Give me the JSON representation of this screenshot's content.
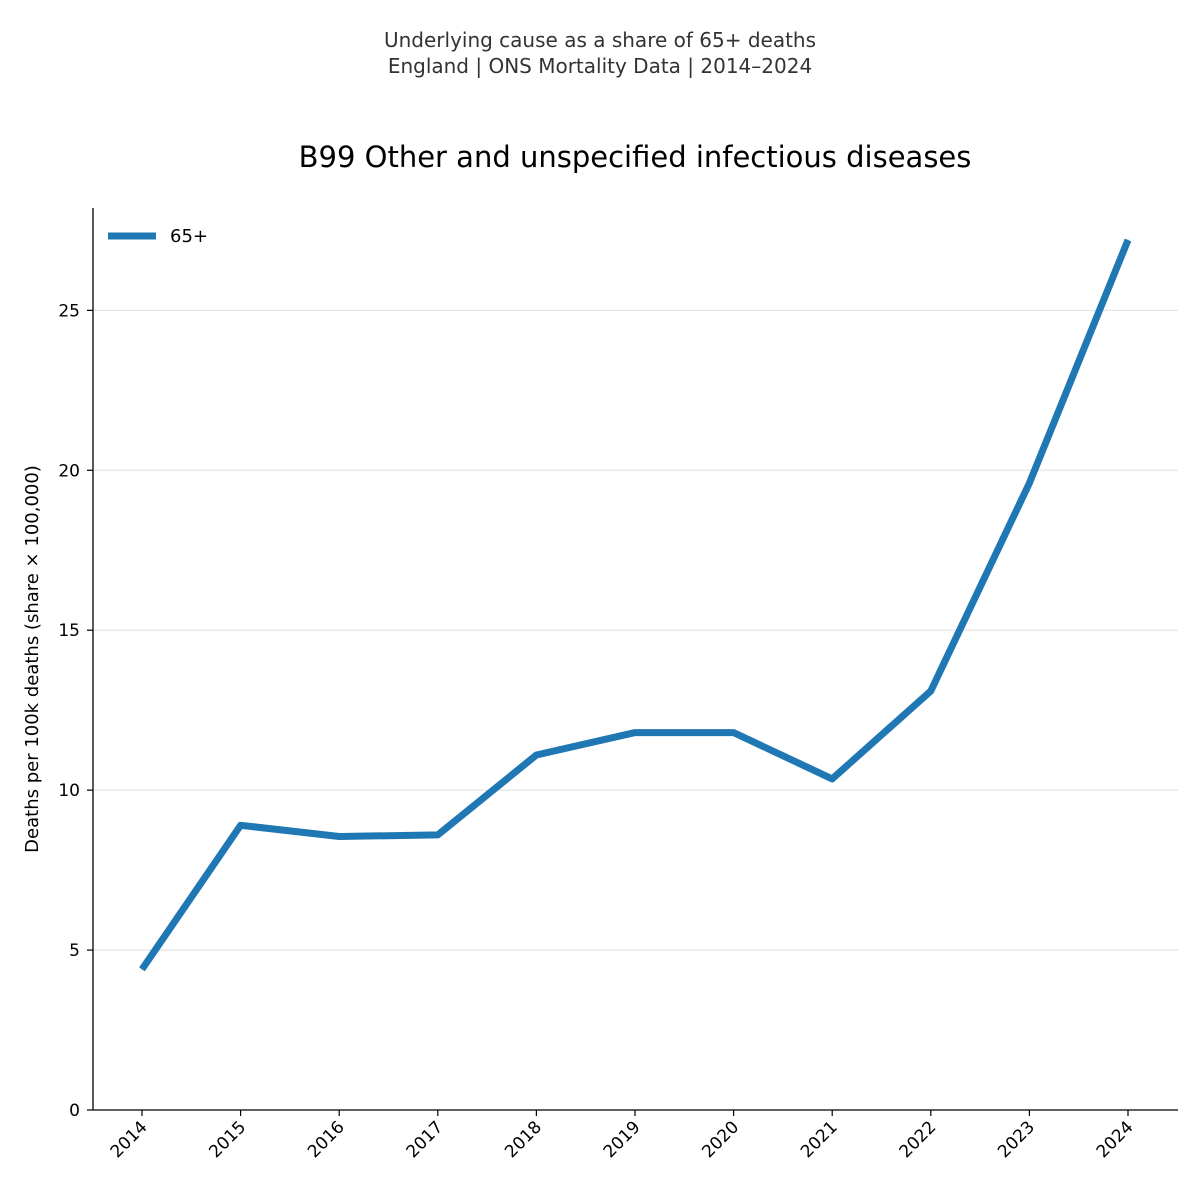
{
  "header": {
    "subtitle_line1": "Underlying cause as a share of 65+ deaths",
    "subtitle_line2": "England | ONS Mortality Data | 2014–2024"
  },
  "chart_data": {
    "type": "line",
    "title": "B99 Other and unspecified infectious diseases",
    "xlabel": "",
    "ylabel": "Deaths per 100k deaths (share × 100,000)",
    "categories": [
      "2014",
      "2015",
      "2016",
      "2017",
      "2018",
      "2019",
      "2020",
      "2021",
      "2022",
      "2023",
      "2024"
    ],
    "series": [
      {
        "name": "65+",
        "color": "#1f77b4",
        "values": [
          4.4,
          8.9,
          8.55,
          8.6,
          11.1,
          11.8,
          11.8,
          10.35,
          13.1,
          19.6,
          27.2
        ]
      }
    ],
    "ylim": [
      0,
      28.2
    ],
    "yticks": [
      0,
      5,
      10,
      15,
      20,
      25
    ],
    "grid": "horizontal",
    "legend": "upper-left"
  }
}
